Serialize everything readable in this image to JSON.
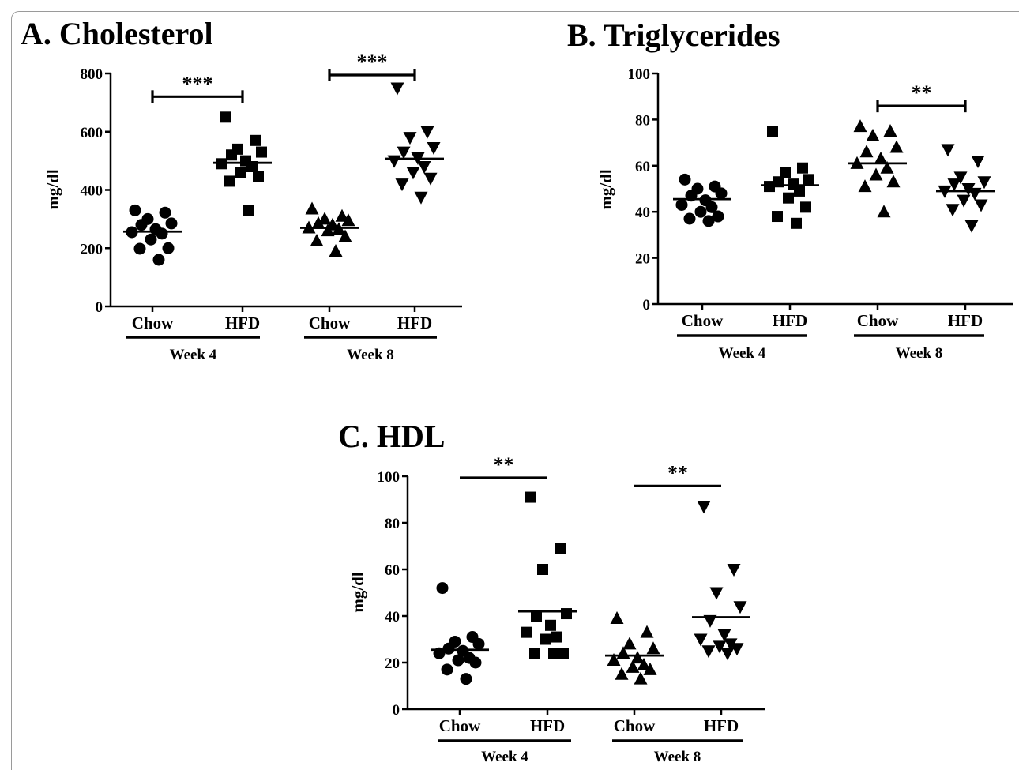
{
  "chart_data": [
    {
      "type": "scatter",
      "title": "A. Cholesterol",
      "ylabel": "mg/dl",
      "ylim": [
        0,
        800
      ],
      "yticks": [
        0,
        200,
        400,
        600,
        800
      ],
      "categories": [
        "Chow",
        "HFD",
        "Chow",
        "HFD"
      ],
      "group_labels": [
        "Week 4",
        "Week 8"
      ],
      "series": [
        {
          "marker": "circle",
          "mean": 257,
          "values": [
            330,
            322,
            300,
            285,
            280,
            265,
            255,
            250,
            230,
            200,
            198,
            160
          ]
        },
        {
          "marker": "square",
          "mean": 493,
          "values": [
            650,
            570,
            540,
            530,
            520,
            500,
            490,
            480,
            460,
            445,
            430,
            330
          ]
        },
        {
          "marker": "triangle-up",
          "mean": 270,
          "values": [
            335,
            310,
            300,
            295,
            285,
            280,
            270,
            265,
            260,
            240,
            225,
            190
          ]
        },
        {
          "marker": "triangle-down",
          "mean": 507,
          "values": [
            750,
            600,
            580,
            545,
            530,
            510,
            500,
            480,
            460,
            440,
            420,
            375
          ]
        }
      ],
      "significance": [
        {
          "between": [
            0,
            1
          ],
          "label": "***"
        },
        {
          "between": [
            2,
            3
          ],
          "label": "***"
        }
      ]
    },
    {
      "type": "scatter",
      "title": "B. Triglycerides",
      "ylabel": "mg/dl",
      "ylim": [
        0,
        100
      ],
      "yticks": [
        0,
        20,
        40,
        60,
        80,
        100
      ],
      "categories": [
        "Chow",
        "HFD",
        "Chow",
        "HFD"
      ],
      "group_labels": [
        "Week 4",
        "Week 8"
      ],
      "series": [
        {
          "marker": "circle",
          "mean": 45.5,
          "values": [
            54,
            51,
            50,
            48,
            47,
            45,
            43,
            42,
            40,
            38,
            37,
            36
          ]
        },
        {
          "marker": "square",
          "mean": 51.5,
          "values": [
            75,
            59,
            57,
            54,
            53,
            52,
            51,
            49,
            46,
            42,
            38,
            35
          ]
        },
        {
          "marker": "triangle-up",
          "mean": 61,
          "values": [
            77,
            75,
            73,
            68,
            66,
            63,
            61,
            59,
            56,
            53,
            51,
            40
          ]
        },
        {
          "marker": "triangle-down",
          "mean": 49,
          "values": [
            67,
            62,
            55,
            53,
            52,
            50,
            49,
            48,
            45,
            43,
            41,
            34
          ]
        }
      ],
      "significance": [
        {
          "between": [
            2,
            3
          ],
          "label": "**"
        }
      ]
    },
    {
      "type": "scatter",
      "title": "C. HDL",
      "ylabel": "mg/dl",
      "ylim": [
        0,
        100
      ],
      "yticks": [
        0,
        20,
        40,
        60,
        80,
        100
      ],
      "categories": [
        "Chow",
        "HFD",
        "Chow",
        "HFD"
      ],
      "group_labels": [
        "Week 4",
        "Week 8"
      ],
      "series": [
        {
          "marker": "circle",
          "mean": 25.5,
          "values": [
            52,
            31,
            29,
            28,
            26,
            25,
            24,
            22,
            21,
            20,
            17,
            13
          ]
        },
        {
          "marker": "square",
          "mean": 42,
          "values": [
            91,
            69,
            60,
            41,
            40,
            36,
            33,
            31,
            30,
            24,
            24,
            24
          ]
        },
        {
          "marker": "triangle-up",
          "mean": 23,
          "values": [
            39,
            33,
            28,
            26,
            24,
            22,
            21,
            19,
            18,
            17,
            15,
            13
          ]
        },
        {
          "marker": "triangle-down",
          "mean": 39.5,
          "values": [
            87,
            60,
            50,
            44,
            38,
            32,
            30,
            28,
            27,
            26,
            25,
            24
          ]
        }
      ],
      "significance": [
        {
          "between": [
            0,
            1
          ],
          "label": "**"
        },
        {
          "between": [
            2,
            3
          ],
          "label": "**"
        }
      ]
    }
  ]
}
